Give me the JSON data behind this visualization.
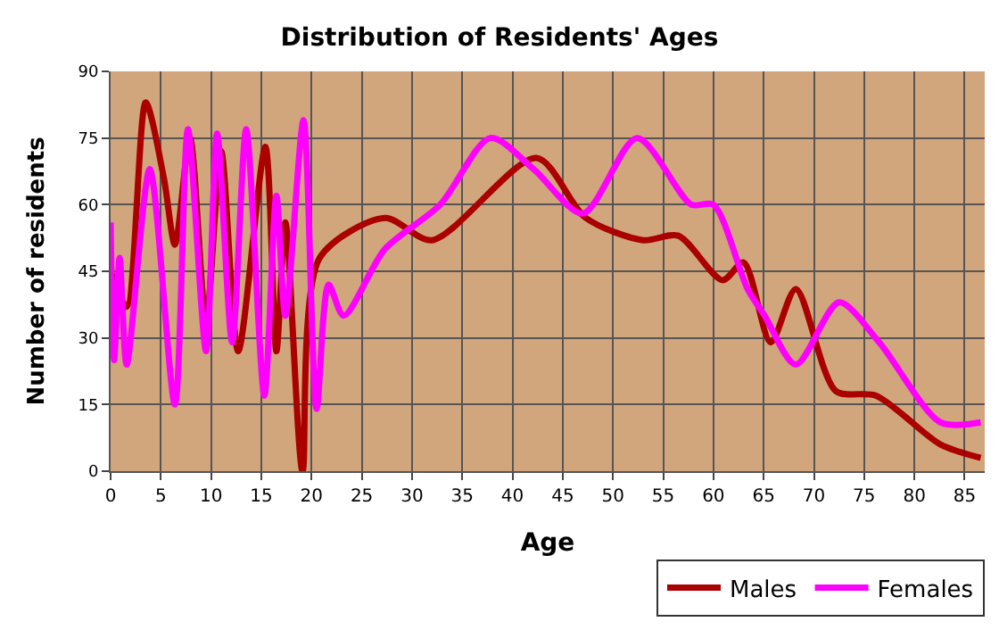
{
  "chart_data": {
    "type": "line",
    "title": "Distribution of Residents' Ages",
    "xlabel": "Age",
    "ylabel": "Number of residents",
    "xlim": [
      0,
      87
    ],
    "xticks": [
      0,
      5,
      10,
      15,
      20,
      25,
      30,
      35,
      40,
      45,
      50,
      55,
      60,
      65,
      70,
      75,
      80,
      85
    ],
    "ylim": [
      0,
      90
    ],
    "yticks": [
      0,
      15,
      30,
      45,
      60,
      75,
      90
    ],
    "grid": true,
    "legend": "bottom right",
    "series": [
      {
        "name": "Males",
        "color": "#aa0000",
        "x": [
          0,
          1.6,
          3.5,
          5.3,
          6.4,
          7.9,
          9.5,
          11,
          12.7,
          15.4,
          16.5,
          17.4,
          19.1,
          20.8,
          27.3,
          32,
          42.4,
          47.3,
          53,
          56.5,
          60.9,
          63,
          65.7,
          68.2,
          72.2,
          76.2,
          82.6,
          86.6
        ],
        "values": [
          45,
          37,
          83,
          66,
          51,
          75,
          34,
          72,
          27,
          73,
          27,
          56,
          0,
          48,
          57,
          52,
          70.5,
          57,
          52,
          53,
          43,
          47,
          29,
          41,
          18,
          17,
          6,
          3
        ]
      },
      {
        "name": "Females",
        "color": "#ff00ff",
        "x": [
          0,
          0.35,
          0.9,
          1.6,
          3.9,
          6.4,
          7.7,
          9.5,
          10.6,
          12.1,
          13.5,
          15.3,
          16.5,
          17.4,
          19.2,
          20.5,
          21.7,
          23.2,
          27.3,
          32.8,
          37.8,
          42.1,
          47,
          52.4,
          57.8,
          60,
          63.4,
          65.1,
          68.2,
          72.5,
          76.5,
          82.6,
          86.6
        ],
        "values": [
          56,
          25,
          48,
          24,
          68,
          15,
          77,
          27,
          76,
          29,
          77,
          17,
          62,
          35,
          79,
          14,
          42,
          35,
          50,
          60,
          75,
          68,
          58,
          75,
          60,
          60,
          41,
          35,
          24,
          38,
          29,
          11,
          11
        ]
      }
    ]
  }
}
